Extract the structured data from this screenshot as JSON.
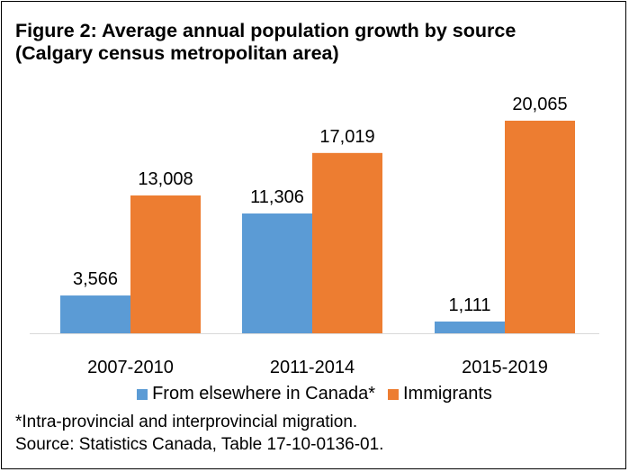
{
  "title_line1": "Figure 2: Average annual population growth by source",
  "title_line2": "(Calgary census metropolitan area)",
  "footnote": "*Intra-provincial and interprovincial migration.",
  "source": "Source: Statistics Canada, Table 17-10-0136-01.",
  "colors": {
    "series1": "#5b9bd5",
    "series2": "#ed7d31",
    "axis": "#d9d9d9"
  },
  "chart_data": {
    "type": "bar",
    "categories": [
      "2007-2010",
      "2011-2014",
      "2015-2019"
    ],
    "series": [
      {
        "name": "From elsewhere in Canada*",
        "values": [
          3566,
          11306,
          1111
        ],
        "labels": [
          "3,566",
          "11,306",
          "1,111"
        ]
      },
      {
        "name": "Immigrants",
        "values": [
          13008,
          17019,
          20065
        ],
        "labels": [
          "13,008",
          "17,019",
          "20,065"
        ]
      }
    ],
    "ylim": [
      0,
      20065
    ],
    "grid": false,
    "legend_position": "bottom"
  }
}
